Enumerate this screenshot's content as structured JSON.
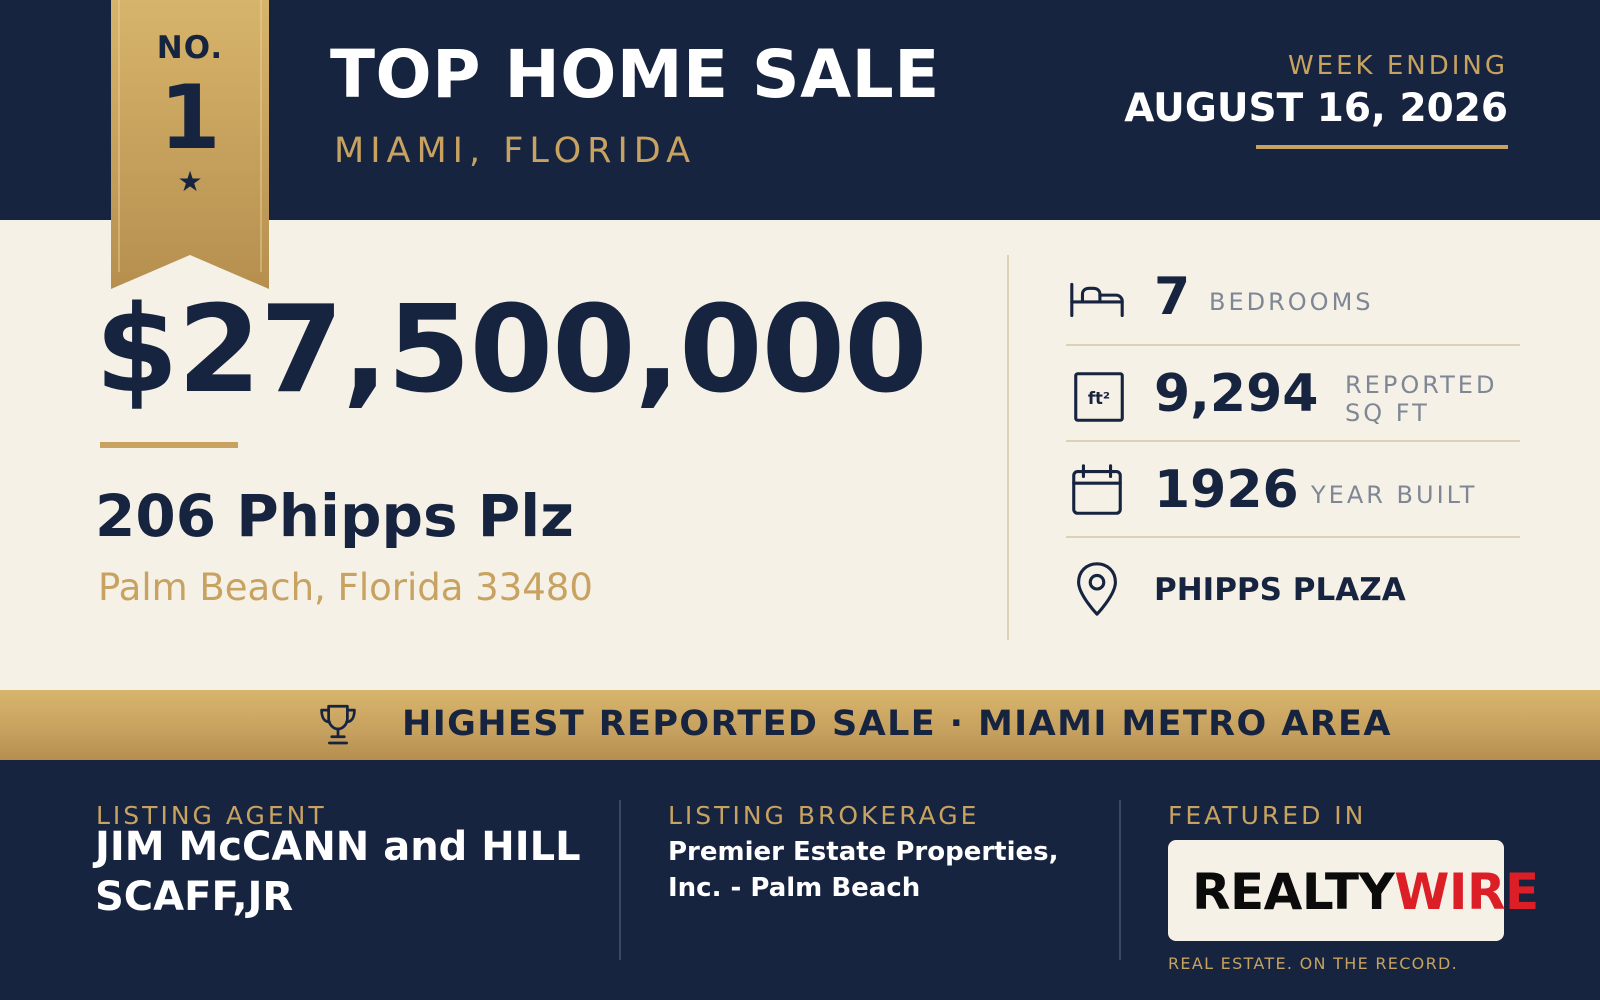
{
  "banner": {
    "title": "TOP HOME SALE",
    "location": "MIAMI, FLORIDA",
    "week_label": "WEEK ENDING",
    "week_date": "AUGUST 16, 2026"
  },
  "ribbon": {
    "prefix": "NO.",
    "rank": "1",
    "star": "★"
  },
  "property": {
    "price": "$27,500,000",
    "address": "206 Phipps Plz",
    "city": "Palm Beach, Florida 33480"
  },
  "stats": {
    "bedrooms": {
      "icon": "bed-icon",
      "value": "7",
      "label": "BEDROOMS"
    },
    "square_feet": {
      "icon": "square-feet-icon",
      "icon_text": "ft²",
      "value": "9,294",
      "label": "REPORTED SQ FT"
    },
    "year_built": {
      "icon": "calendar-icon",
      "value": "1926",
      "label": "YEAR BUILT"
    },
    "neighborhood": {
      "icon": "location-pin-icon",
      "label": "PHIPPS PLAZA"
    }
  },
  "highlight": {
    "icon": "trophy-icon",
    "text": "HIGHEST REPORTED SALE · MIAMI METRO AREA"
  },
  "footer": {
    "listing_agent_label": "LISTING AGENT",
    "listing_agent_name": "JIM McCANN and HILL SCAFF,JR",
    "listing_brokerage_label": "LISTING BROKERAGE",
    "listing_brokerage_name": "Premier Estate Properties, Inc. - Palm Beach",
    "featured_label": "FEATURED IN",
    "publication_name_part1": "REALTY",
    "publication_name_part2": "WIRE",
    "tagline": "REAL ESTATE. ON THE RECORD."
  },
  "colors": {
    "navy": "#172440",
    "cream": "#f6f1e6",
    "gold": "#c7a260",
    "white": "#ffffff",
    "gray_text": "#7f8796",
    "logo_red": "#dc1f26"
  }
}
